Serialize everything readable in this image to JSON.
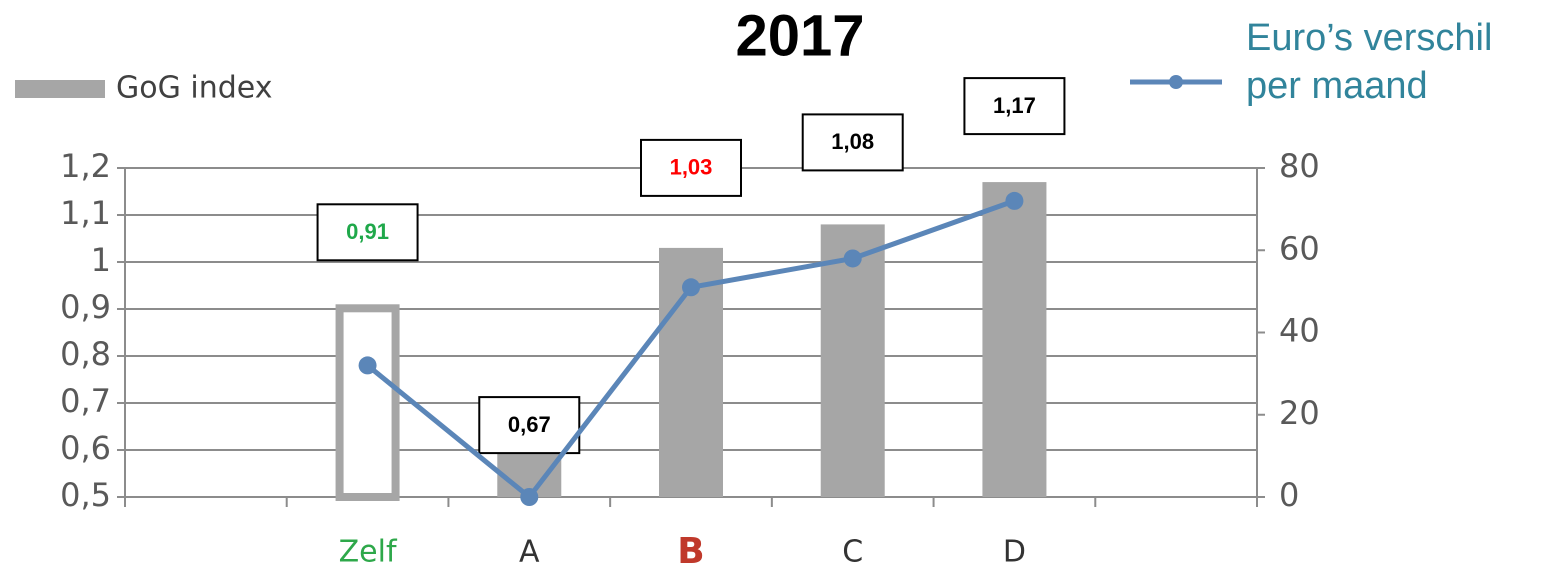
{
  "chart_data": {
    "type": "bar",
    "title": "2017",
    "categories": [
      null,
      "Zelf",
      "A",
      "B",
      "C",
      "D",
      null
    ],
    "category_colors": [
      null,
      "#2ea84a",
      "#333333",
      "#c0392b",
      "#333333",
      "#333333",
      null
    ],
    "category_bold": 3,
    "series": [
      {
        "name": "GoG index",
        "type": "bar",
        "color": "#a6a6a6",
        "values": [
          null,
          0.91,
          0.67,
          1.03,
          1.08,
          1.17,
          null
        ],
        "value_labels": [
          null,
          "0,91",
          "0,67",
          "1,03",
          "1,08",
          "1,17",
          null
        ],
        "value_label_colors": [
          null,
          "#1fa84a",
          "#000000",
          "#ff0000",
          "#000000",
          "#000000",
          null
        ],
        "outlined_bar": 1
      },
      {
        "name": "Euro’s verschil per maand",
        "type": "line",
        "axis": "y2",
        "color": "#5b86b8",
        "values": [
          null,
          32,
          0,
          51,
          58,
          72,
          null
        ]
      }
    ],
    "ylim": [
      0.5,
      1.2
    ],
    "yticks": [
      {
        "value": 0.5,
        "label": "0,5"
      },
      {
        "value": 0.6,
        "label": "0,6"
      },
      {
        "value": 0.7,
        "label": "0,7"
      },
      {
        "value": 0.8,
        "label": "0,8"
      },
      {
        "value": 0.9,
        "label": "0,9"
      },
      1,
      {
        "value": 1.1,
        "label": "1,1"
      },
      {
        "value": 1.2,
        "label": "1,2"
      }
    ],
    "y2lim": [
      0,
      80
    ],
    "y2ticks": [
      0,
      20,
      40,
      60,
      80
    ],
    "grid": true
  }
}
